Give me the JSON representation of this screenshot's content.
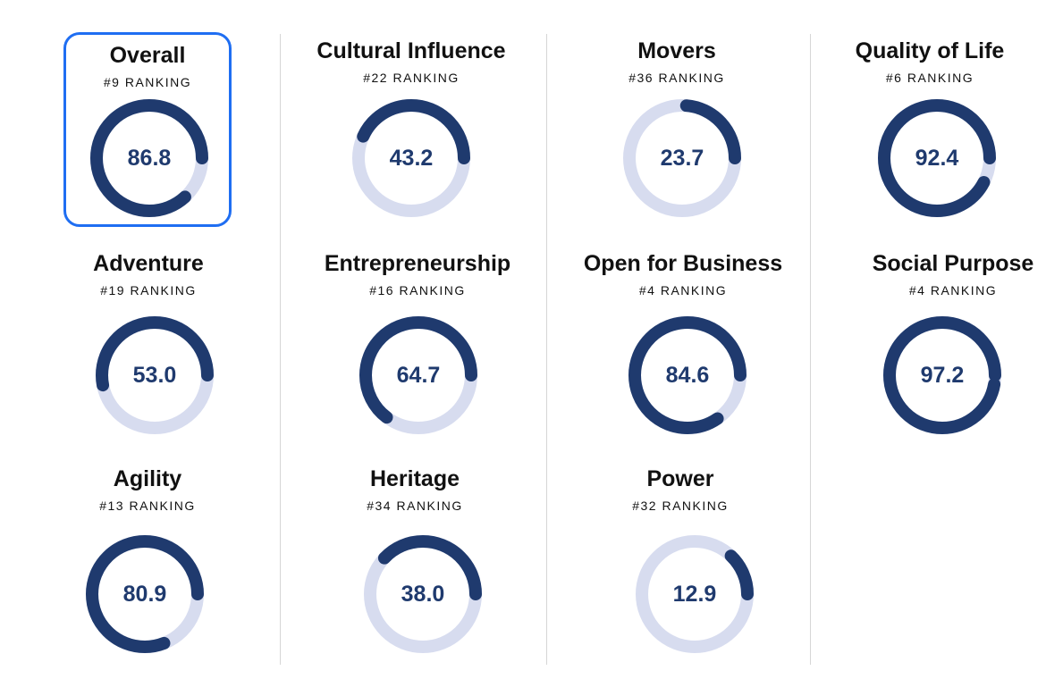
{
  "cards": [
    {
      "title": "Overall",
      "rank": "#9 RANKING",
      "score": "86.8",
      "value": 86.8,
      "selected": true
    },
    {
      "title": "Cultural Influence",
      "rank": "#22 RANKING",
      "score": "43.2",
      "value": 43.2
    },
    {
      "title": "Movers",
      "rank": "#36 RANKING",
      "score": "23.7",
      "value": 23.7
    },
    {
      "title": "Quality of Life",
      "rank": "#6 RANKING",
      "score": "92.4",
      "value": 92.4
    },
    {
      "title": "Adventure",
      "rank": "#19 RANKING",
      "score": "53.0",
      "value": 53.0
    },
    {
      "title": "Entrepreneurship",
      "rank": "#16 RANKING",
      "score": "64.7",
      "value": 64.7
    },
    {
      "title": "Open for Business",
      "rank": "#4 RANKING",
      "score": "84.6",
      "value": 84.6
    },
    {
      "title": "Social Purpose",
      "rank": "#4 RANKING",
      "score": "97.2",
      "value": 97.2
    },
    {
      "title": "Agility",
      "rank": "#13 RANKING",
      "score": "80.9",
      "value": 80.9
    },
    {
      "title": "Heritage",
      "rank": "#34 RANKING",
      "score": "38.0",
      "value": 38.0
    },
    {
      "title": "Power",
      "rank": "#32 RANKING",
      "score": "12.9",
      "value": 12.9
    }
  ],
  "colors": {
    "ring_fill": "#1f3a6e",
    "ring_track": "#d7dcef",
    "selected_border": "#1f6ef2"
  }
}
